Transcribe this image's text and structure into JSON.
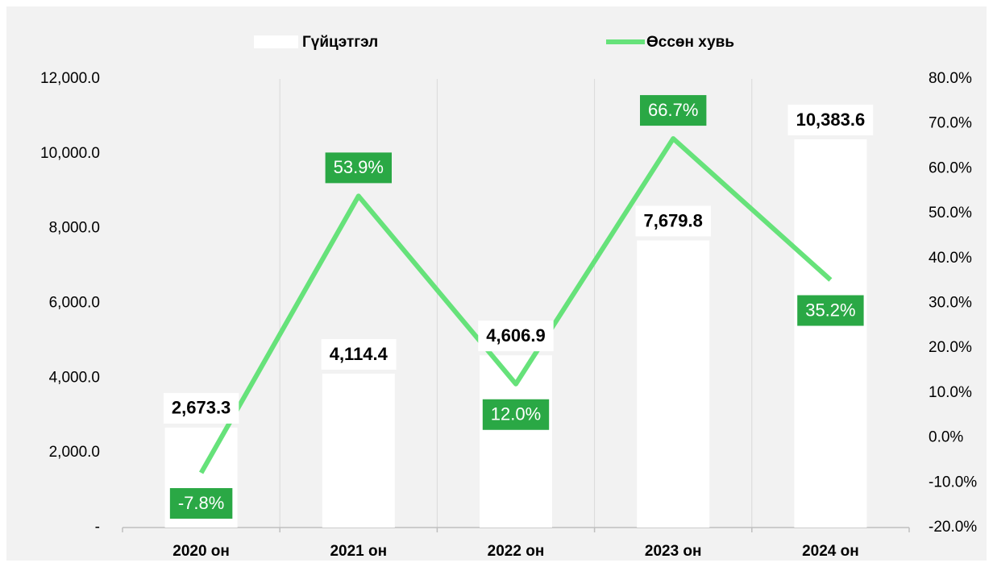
{
  "chart_data": {
    "type": "bar",
    "categories": [
      "2020 он",
      "2021 он",
      "2022 он",
      "2023 он",
      "2024 он"
    ],
    "series": [
      {
        "name": "Гүйцэтгэл",
        "type": "bar",
        "color": "#ffffff",
        "values": [
          2673.3,
          4114.4,
          4606.9,
          7679.8,
          10383.6
        ],
        "value_labels": [
          "2,673.3",
          "4,114.4",
          "4,606.9",
          "7,679.8",
          "10,383.6"
        ]
      },
      {
        "name": "Өссөн хувь",
        "type": "line",
        "axis": "y2",
        "color": "#66e27a",
        "values": [
          -7.8,
          53.9,
          12.0,
          66.7,
          35.2
        ],
        "value_labels": [
          "-7.8%",
          "53.9%",
          "12.0%",
          "66.7%",
          "35.2%"
        ]
      }
    ],
    "ylim": [
      0,
      12000
    ],
    "yticks": [
      {
        "value": 0,
        "label": "-"
      },
      {
        "value": 2000,
        "label": "2,000.0"
      },
      {
        "value": 4000,
        "label": "4,000.0"
      },
      {
        "value": 6000,
        "label": "6,000.0"
      },
      {
        "value": 8000,
        "label": "8,000.0"
      },
      {
        "value": 10000,
        "label": "10,000.0"
      },
      {
        "value": 12000,
        "label": "12,000.0"
      }
    ],
    "y2lim": [
      -20,
      80
    ],
    "y2ticks": [
      {
        "value": -20,
        "label": "-20.0%"
      },
      {
        "value": -10,
        "label": "-10.0%"
      },
      {
        "value": 0,
        "label": "0.0%"
      },
      {
        "value": 10,
        "label": "10.0%"
      },
      {
        "value": 20,
        "label": "20.0%"
      },
      {
        "value": 30,
        "label": "30.0%"
      },
      {
        "value": 40,
        "label": "40.0%"
      },
      {
        "value": 50,
        "label": "50.0%"
      },
      {
        "value": 60,
        "label": "60.0%"
      },
      {
        "value": 70,
        "label": "70.0%"
      },
      {
        "value": 80,
        "label": "80.0%"
      }
    ],
    "legend": "top"
  }
}
